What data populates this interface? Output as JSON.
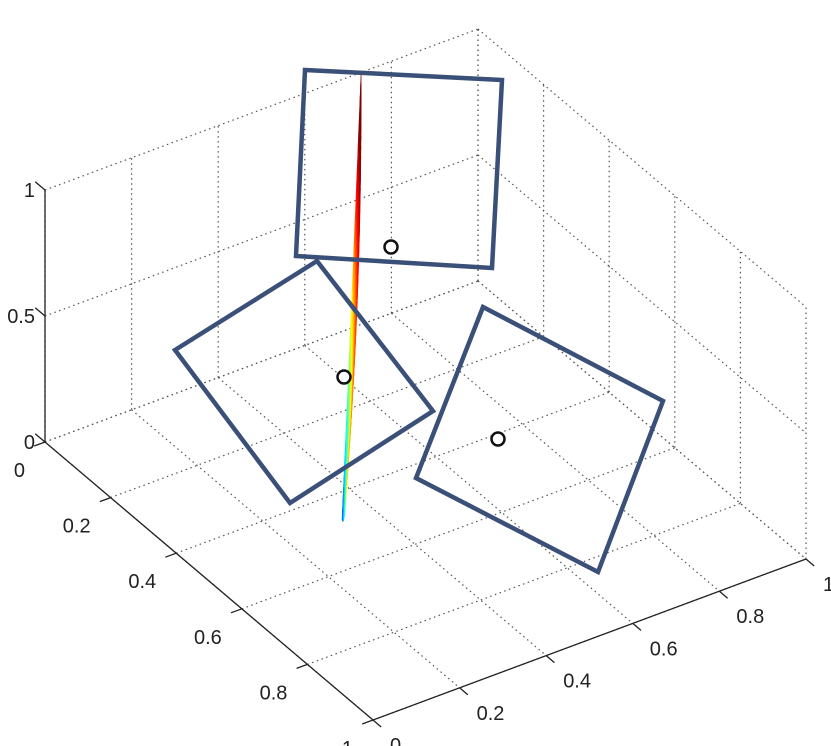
{
  "chart_data": {
    "type": "surface",
    "title": "",
    "xlabel": "",
    "ylabel": "",
    "zlabel": "",
    "xlim": [
      0,
      1
    ],
    "ylim": [
      0,
      1
    ],
    "zlim": [
      0,
      1
    ],
    "x_ticks": [
      "0",
      "0.2",
      "0.4",
      "0.6",
      "0.8",
      "1"
    ],
    "y_ticks": [
      "0",
      "0.2",
      "0.4",
      "0.6",
      "0.8",
      "1"
    ],
    "z_ticks": [
      "0",
      "0.5",
      "1"
    ],
    "grid": true,
    "colormap": "jet",
    "surface": {
      "corners": [
        {
          "name": "red-tip",
          "x": 0.0,
          "y": 0.73,
          "z": 1.0
        },
        {
          "name": "cyan-corner",
          "x": 0.92,
          "y": 0.0,
          "z": 0.85
        },
        {
          "name": "blue-tip",
          "x": 0.47,
          "y": 0.33,
          "z": 0.0
        }
      ]
    },
    "annotations": {
      "square_color": "#3a5078",
      "point_fill": "#ffffff",
      "point_stroke": "#111111",
      "squares": [
        {
          "name": "top-square",
          "marker": {
            "x": 0.57,
            "y": 0.3,
            "z": 0.8
          }
        },
        {
          "name": "left-square",
          "marker": {
            "x": 0.1,
            "y": 0.55,
            "z": 0.66
          }
        },
        {
          "name": "right-square",
          "marker": {
            "x": 0.72,
            "y": 0.06,
            "z": 0.36
          }
        }
      ]
    }
  }
}
